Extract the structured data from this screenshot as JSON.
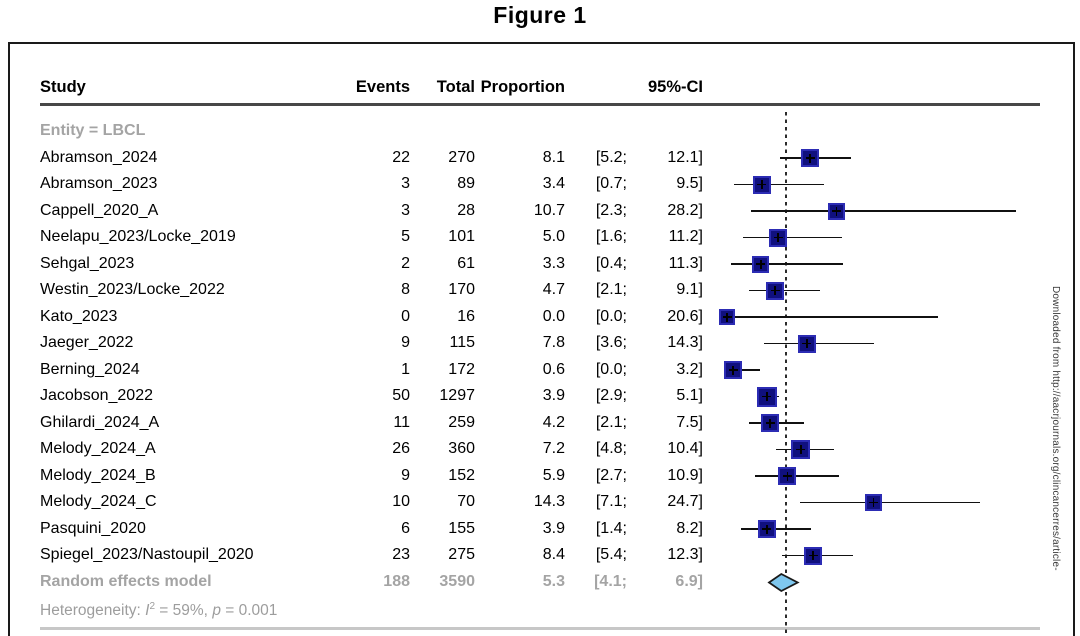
{
  "figure_title": "Figure 1",
  "watermark": "Downloaded from http://aacrjournals.org/clincancerres/article-",
  "table": {
    "headers": {
      "study": "Study",
      "events": "Events",
      "total": "Total",
      "proportion": "Proportion",
      "ci": "95%-CI"
    }
  },
  "heterogeneity_note": {
    "prefix": "Heterogeneity: ",
    "stat_italic": "I",
    "stat_sup": "2",
    "mid": " = 59%, ",
    "p_italic": "p",
    "suffix": " = 0.001"
  },
  "colors": {
    "square_fill": "#10107e",
    "square_border": "#2c2cb4",
    "diamond_fill": "#7fc7ee",
    "diamond_border": "#1a1a1a",
    "muted_text": "#a4a4a4",
    "reference_line": "#2b2b2b"
  },
  "chart_data": {
    "type": "scatter",
    "variant": "forest_plot",
    "title": "Figure 1",
    "group_label": "Entity = LBCL",
    "columns": [
      "Study",
      "Events",
      "Total",
      "Proportion",
      "95%-CI"
    ],
    "x_meaning": "Proportion (%) with 95% confidence interval",
    "xlim": [
      0,
      30.5
    ],
    "reference_line_at": 5.3,
    "reference_line_style": "dotted",
    "grid": false,
    "legend": false,
    "studies": [
      {
        "study": "Abramson_2024",
        "events": 22,
        "total": 270,
        "proportion": 8.1,
        "ci": [
          5.2,
          12.1
        ]
      },
      {
        "study": "Abramson_2023",
        "events": 3,
        "total": 89,
        "proportion": 3.4,
        "ci": [
          0.7,
          9.5
        ]
      },
      {
        "study": "Cappell_2020_A",
        "events": 3,
        "total": 28,
        "proportion": 10.7,
        "ci": [
          2.3,
          28.2
        ]
      },
      {
        "study": "Neelapu_2023/Locke_2019",
        "events": 5,
        "total": 101,
        "proportion": 5.0,
        "ci": [
          1.6,
          11.2
        ]
      },
      {
        "study": "Sehgal_2023",
        "events": 2,
        "total": 61,
        "proportion": 3.3,
        "ci": [
          0.4,
          11.3
        ]
      },
      {
        "study": "Westin_2023/Locke_2022",
        "events": 8,
        "total": 170,
        "proportion": 4.7,
        "ci": [
          2.1,
          9.1
        ]
      },
      {
        "study": "Kato_2023",
        "events": 0,
        "total": 16,
        "proportion": 0.0,
        "ci": [
          0.0,
          20.6
        ]
      },
      {
        "study": "Jaeger_2022",
        "events": 9,
        "total": 115,
        "proportion": 7.8,
        "ci": [
          3.6,
          14.3
        ]
      },
      {
        "study": "Berning_2024",
        "events": 1,
        "total": 172,
        "proportion": 0.6,
        "ci": [
          0.0,
          3.2
        ]
      },
      {
        "study": "Jacobson_2022",
        "events": 50,
        "total": 1297,
        "proportion": 3.9,
        "ci": [
          2.9,
          5.1
        ]
      },
      {
        "study": "Ghilardi_2024_A",
        "events": 11,
        "total": 259,
        "proportion": 4.2,
        "ci": [
          2.1,
          7.5
        ]
      },
      {
        "study": "Melody_2024_A",
        "events": 26,
        "total": 360,
        "proportion": 7.2,
        "ci": [
          4.8,
          10.4
        ]
      },
      {
        "study": "Melody_2024_B",
        "events": 9,
        "total": 152,
        "proportion": 5.9,
        "ci": [
          2.7,
          10.9
        ]
      },
      {
        "study": "Melody_2024_C",
        "events": 10,
        "total": 70,
        "proportion": 14.3,
        "ci": [
          7.1,
          24.7
        ]
      },
      {
        "study": "Pasquini_2020",
        "events": 6,
        "total": 155,
        "proportion": 3.9,
        "ci": [
          1.4,
          8.2
        ]
      },
      {
        "study": "Spiegel_2023/Nastoupil_2020",
        "events": 23,
        "total": 275,
        "proportion": 8.4,
        "ci": [
          5.4,
          12.3
        ]
      }
    ],
    "summary": {
      "label": "Random effects model",
      "events": 188,
      "total": 3590,
      "proportion": 5.3,
      "ci": [
        4.1,
        6.9
      ]
    },
    "heterogeneity": {
      "I2": "59%",
      "p": "0.001"
    }
  }
}
